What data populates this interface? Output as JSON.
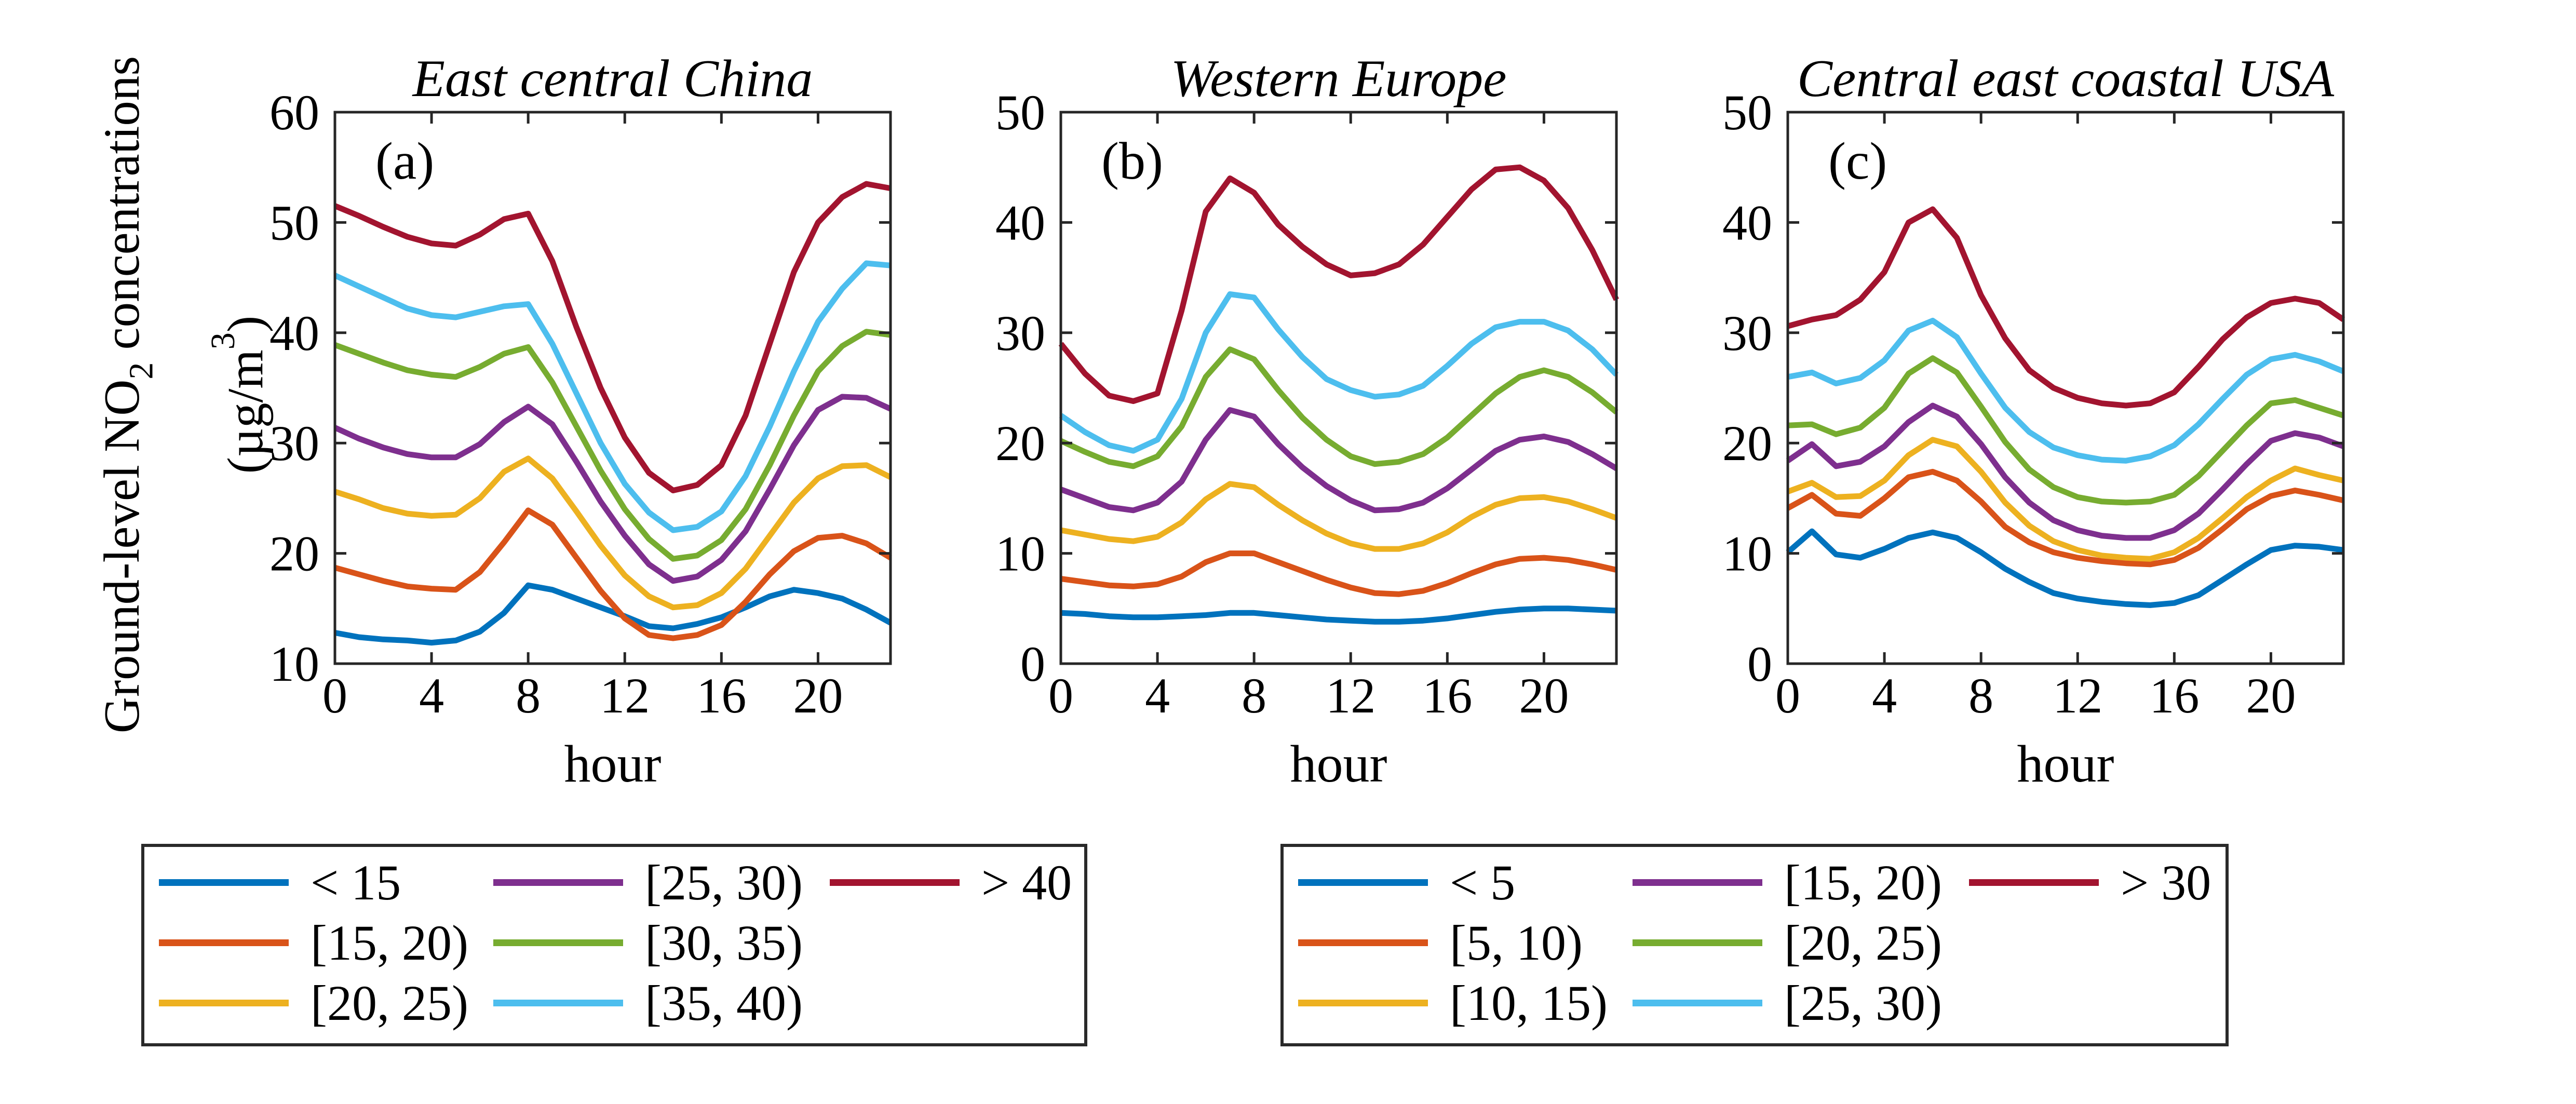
{
  "figure": {
    "y_axis_label_line1": {
      "prefix": "Ground-level NO",
      "sub": "2",
      "suffix": " concentrations"
    },
    "y_axis_label_line2": {
      "prefix": "(µg/m",
      "sup": "3",
      "suffix": ")"
    },
    "x_axis_label": "hour"
  },
  "palette": {
    "blue": "#0072BD",
    "orange": "#D95319",
    "yellow": "#EDB120",
    "purple": "#7E2F8E",
    "green": "#77AC30",
    "cyan": "#4DBEEE",
    "dark_red": "#A2142F",
    "axis": "#262626",
    "text": "#000000"
  },
  "chart_data": [
    {
      "type": "line",
      "panel_label": "(a)",
      "title": "East central China",
      "xlabel": "hour",
      "x": [
        0,
        1,
        2,
        3,
        4,
        5,
        6,
        7,
        8,
        9,
        10,
        11,
        12,
        13,
        14,
        15,
        16,
        17,
        18,
        19,
        20,
        21,
        22,
        23
      ],
      "xticks": [
        0,
        4,
        8,
        12,
        16,
        20
      ],
      "ylim": [
        10,
        60
      ],
      "yticks": [
        10,
        20,
        30,
        40,
        50,
        60
      ],
      "grid": false,
      "series": [
        {
          "name": "< 15",
          "color_key": "blue",
          "values": [
            12.8,
            12.4,
            12.2,
            12.1,
            11.9,
            12.1,
            12.9,
            14.6,
            17.1,
            16.7,
            15.9,
            15.1,
            14.3,
            13.4,
            13.2,
            13.6,
            14.2,
            15.1,
            16.1,
            16.7,
            16.4,
            15.9,
            14.9,
            13.7
          ]
        },
        {
          "name": "[15, 20)",
          "color_key": "orange",
          "values": [
            18.7,
            18.1,
            17.5,
            17.0,
            16.8,
            16.7,
            18.3,
            21.0,
            23.9,
            22.6,
            19.6,
            16.6,
            14.1,
            12.6,
            12.3,
            12.6,
            13.5,
            15.6,
            18.1,
            20.2,
            21.4,
            21.6,
            20.9,
            19.6
          ]
        },
        {
          "name": "[20, 25)",
          "color_key": "yellow",
          "values": [
            25.6,
            24.9,
            24.1,
            23.6,
            23.4,
            23.5,
            25.0,
            27.4,
            28.6,
            26.8,
            23.8,
            20.7,
            18.0,
            16.1,
            15.1,
            15.3,
            16.4,
            18.6,
            21.6,
            24.6,
            26.8,
            27.9,
            28.0,
            26.9
          ]
        },
        {
          "name": "[25, 30)",
          "color_key": "purple",
          "values": [
            31.4,
            30.4,
            29.6,
            29.0,
            28.7,
            28.7,
            29.9,
            31.9,
            33.3,
            31.7,
            28.3,
            24.7,
            21.6,
            19.0,
            17.5,
            17.9,
            19.4,
            22.0,
            25.8,
            29.8,
            33.0,
            34.2,
            34.1,
            33.1
          ]
        },
        {
          "name": "[30, 35)",
          "color_key": "green",
          "values": [
            38.9,
            38.1,
            37.3,
            36.6,
            36.2,
            36.0,
            36.9,
            38.1,
            38.7,
            35.5,
            31.5,
            27.5,
            24.0,
            21.3,
            19.5,
            19.8,
            21.2,
            24.0,
            28.0,
            32.5,
            36.5,
            38.8,
            40.1,
            39.8
          ]
        },
        {
          "name": "[35, 40)",
          "color_key": "cyan",
          "values": [
            45.2,
            44.2,
            43.2,
            42.2,
            41.6,
            41.4,
            41.9,
            42.4,
            42.6,
            39.0,
            34.5,
            30.0,
            26.3,
            23.7,
            22.1,
            22.4,
            23.8,
            27.0,
            31.5,
            36.5,
            41.0,
            44.0,
            46.3,
            46.1
          ]
        },
        {
          "name": "> 40",
          "color_key": "dark_red",
          "values": [
            51.5,
            50.6,
            49.6,
            48.7,
            48.1,
            47.9,
            48.9,
            50.3,
            50.8,
            46.5,
            40.5,
            35.0,
            30.5,
            27.3,
            25.7,
            26.2,
            28.0,
            32.5,
            39.0,
            45.5,
            50.0,
            52.3,
            53.5,
            53.1
          ]
        }
      ]
    },
    {
      "type": "line",
      "panel_label": "(b)",
      "title": "Western Europe",
      "xlabel": "hour",
      "x": [
        0,
        1,
        2,
        3,
        4,
        5,
        6,
        7,
        8,
        9,
        10,
        11,
        12,
        13,
        14,
        15,
        16,
        17,
        18,
        19,
        20,
        21,
        22,
        23
      ],
      "xticks": [
        0,
        4,
        8,
        12,
        16,
        20
      ],
      "ylim": [
        0,
        50
      ],
      "yticks": [
        0,
        10,
        20,
        30,
        40,
        50
      ],
      "grid": false,
      "series": [
        {
          "name": "< 5",
          "color_key": "blue",
          "values": [
            4.6,
            4.5,
            4.3,
            4.2,
            4.2,
            4.3,
            4.4,
            4.6,
            4.6,
            4.4,
            4.2,
            4.0,
            3.9,
            3.8,
            3.8,
            3.9,
            4.1,
            4.4,
            4.7,
            4.9,
            5.0,
            5.0,
            4.9,
            4.8
          ]
        },
        {
          "name": "[5, 10)",
          "color_key": "orange",
          "values": [
            7.7,
            7.4,
            7.1,
            7.0,
            7.2,
            7.9,
            9.2,
            10.0,
            10.0,
            9.2,
            8.4,
            7.6,
            6.9,
            6.4,
            6.3,
            6.6,
            7.3,
            8.2,
            9.0,
            9.5,
            9.6,
            9.4,
            9.0,
            8.5
          ]
        },
        {
          "name": "[10, 15)",
          "color_key": "yellow",
          "values": [
            12.1,
            11.7,
            11.3,
            11.1,
            11.5,
            12.8,
            14.9,
            16.3,
            16.0,
            14.4,
            13.0,
            11.8,
            10.9,
            10.4,
            10.4,
            10.9,
            11.9,
            13.3,
            14.4,
            15.0,
            15.1,
            14.7,
            14.0,
            13.2
          ]
        },
        {
          "name": "[15, 20)",
          "color_key": "purple",
          "values": [
            15.8,
            15.0,
            14.2,
            13.9,
            14.6,
            16.5,
            20.3,
            23.0,
            22.4,
            19.9,
            17.8,
            16.1,
            14.8,
            13.9,
            14.0,
            14.6,
            15.9,
            17.6,
            19.3,
            20.3,
            20.6,
            20.1,
            19.0,
            17.7
          ]
        },
        {
          "name": "[20, 25)",
          "color_key": "green",
          "values": [
            20.2,
            19.2,
            18.3,
            17.9,
            18.8,
            21.5,
            26.0,
            28.5,
            27.6,
            24.8,
            22.3,
            20.3,
            18.8,
            18.1,
            18.3,
            19.0,
            20.5,
            22.5,
            24.5,
            26.0,
            26.6,
            26.0,
            24.6,
            22.8
          ]
        },
        {
          "name": "[25, 30)",
          "color_key": "cyan",
          "values": [
            22.5,
            21.0,
            19.8,
            19.3,
            20.3,
            24.0,
            30.0,
            33.5,
            33.2,
            30.3,
            27.8,
            25.8,
            24.8,
            24.2,
            24.4,
            25.2,
            27.0,
            29.0,
            30.5,
            31.0,
            31.0,
            30.2,
            28.5,
            26.2
          ]
        },
        {
          "name": "> 30",
          "color_key": "dark_red",
          "values": [
            29.0,
            26.3,
            24.3,
            23.8,
            24.5,
            32.0,
            41.0,
            44.0,
            42.7,
            39.8,
            37.8,
            36.2,
            35.2,
            35.4,
            36.2,
            38.0,
            40.5,
            43.0,
            44.8,
            45.0,
            43.8,
            41.3,
            37.5,
            33.0
          ]
        }
      ]
    },
    {
      "type": "line",
      "panel_label": "(c)",
      "title": "Central east coastal USA",
      "xlabel": "hour",
      "x": [
        0,
        1,
        2,
        3,
        4,
        5,
        6,
        7,
        8,
        9,
        10,
        11,
        12,
        13,
        14,
        15,
        16,
        17,
        18,
        19,
        20,
        21,
        22,
        23
      ],
      "xticks": [
        0,
        4,
        8,
        12,
        16,
        20
      ],
      "ylim": [
        0,
        50
      ],
      "yticks": [
        0,
        10,
        20,
        30,
        40,
        50
      ],
      "grid": false,
      "series": [
        {
          "name": "< 5",
          "color_key": "blue",
          "values": [
            10.1,
            12.0,
            9.9,
            9.6,
            10.4,
            11.4,
            11.9,
            11.4,
            10.1,
            8.6,
            7.4,
            6.4,
            5.9,
            5.6,
            5.4,
            5.3,
            5.5,
            6.2,
            7.6,
            9.0,
            10.3,
            10.7,
            10.6,
            10.3
          ]
        },
        {
          "name": "[5, 10)",
          "color_key": "orange",
          "values": [
            14.1,
            15.3,
            13.6,
            13.4,
            15.0,
            16.9,
            17.4,
            16.6,
            14.7,
            12.4,
            11.0,
            10.1,
            9.6,
            9.3,
            9.1,
            9.0,
            9.4,
            10.5,
            12.2,
            14.0,
            15.2,
            15.7,
            15.3,
            14.8
          ]
        },
        {
          "name": "[10, 15)",
          "color_key": "yellow",
          "values": [
            15.6,
            16.4,
            15.1,
            15.2,
            16.6,
            18.9,
            20.3,
            19.7,
            17.4,
            14.6,
            12.5,
            11.1,
            10.3,
            9.8,
            9.6,
            9.5,
            10.1,
            11.4,
            13.2,
            15.1,
            16.6,
            17.7,
            17.1,
            16.6
          ]
        },
        {
          "name": "[15, 20)",
          "color_key": "purple",
          "values": [
            18.4,
            19.9,
            17.9,
            18.3,
            19.7,
            21.9,
            23.4,
            22.4,
            19.9,
            16.9,
            14.6,
            13.0,
            12.1,
            11.6,
            11.4,
            11.4,
            12.1,
            13.6,
            15.8,
            18.1,
            20.2,
            20.9,
            20.5,
            19.7
          ]
        },
        {
          "name": "[20, 25)",
          "color_key": "green",
          "values": [
            21.6,
            21.7,
            20.8,
            21.4,
            23.2,
            26.3,
            27.7,
            26.4,
            23.3,
            20.1,
            17.6,
            16.0,
            15.1,
            14.7,
            14.6,
            14.7,
            15.3,
            17.0,
            19.3,
            21.6,
            23.6,
            23.9,
            23.2,
            22.5
          ]
        },
        {
          "name": "[25, 30)",
          "color_key": "cyan",
          "values": [
            26.0,
            26.4,
            25.4,
            25.9,
            27.5,
            30.2,
            31.1,
            29.6,
            26.3,
            23.2,
            21.0,
            19.6,
            18.9,
            18.5,
            18.4,
            18.8,
            19.8,
            21.7,
            24.0,
            26.2,
            27.6,
            28.0,
            27.4,
            26.5
          ]
        },
        {
          "name": "> 30",
          "color_key": "dark_red",
          "values": [
            30.6,
            31.2,
            31.6,
            33.0,
            35.5,
            40.0,
            41.2,
            38.6,
            33.4,
            29.5,
            26.6,
            25.0,
            24.1,
            23.6,
            23.4,
            23.6,
            24.6,
            26.9,
            29.4,
            31.4,
            32.7,
            33.1,
            32.7,
            31.2
          ]
        }
      ]
    }
  ],
  "legends": [
    {
      "entries": [
        {
          "label": "< 15",
          "color_key": "blue"
        },
        {
          "label": "[15, 20)",
          "color_key": "orange"
        },
        {
          "label": "[20, 25)",
          "color_key": "yellow"
        },
        {
          "label": "[25, 30)",
          "color_key": "purple"
        },
        {
          "label": "[30, 35)",
          "color_key": "green"
        },
        {
          "label": "[35, 40)",
          "color_key": "cyan"
        },
        {
          "label": "> 40",
          "color_key": "dark_red"
        }
      ]
    },
    {
      "entries": [
        {
          "label": "< 5",
          "color_key": "blue"
        },
        {
          "label": "[5, 10)",
          "color_key": "orange"
        },
        {
          "label": "[10, 15)",
          "color_key": "yellow"
        },
        {
          "label": "[15, 20)",
          "color_key": "purple"
        },
        {
          "label": "[20, 25)",
          "color_key": "green"
        },
        {
          "label": "[25, 30)",
          "color_key": "cyan"
        },
        {
          "label": "> 30",
          "color_key": "dark_red"
        }
      ]
    }
  ]
}
